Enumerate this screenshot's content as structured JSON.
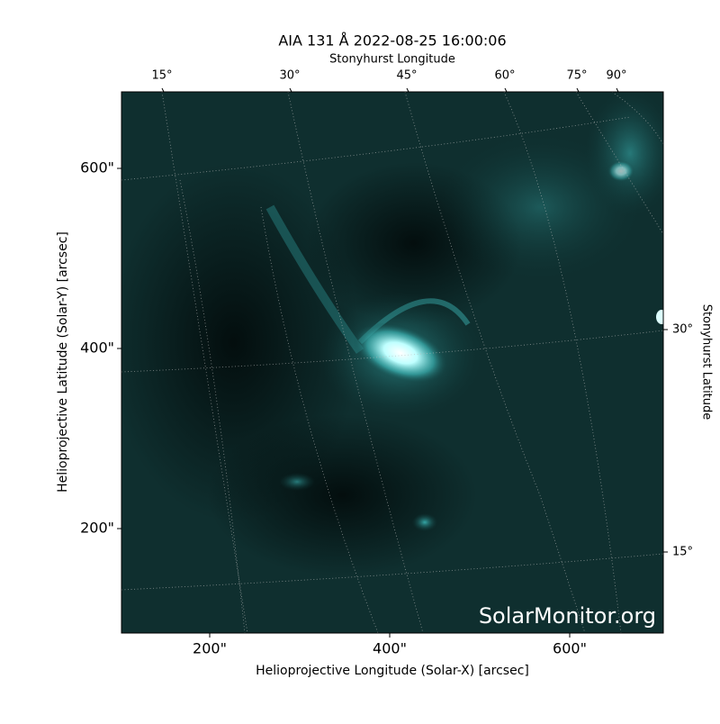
{
  "chart_data": {
    "type": "image",
    "title": "AIA 131 Å 2022-08-25 16:00:06",
    "x_label": "Helioprojective Longitude (Solar-X) [arcsec]",
    "y_label": "Helioprojective Latitude (Solar-Y) [arcsec]",
    "top_label": "Stonyhurst Longitude",
    "right_label": "Stonyhurst Latitude",
    "xlim": [
      102,
      704
    ],
    "ylim": [
      84,
      685
    ],
    "xticks": [
      {
        "value": 200,
        "label": "200\""
      },
      {
        "value": 400,
        "label": "400\""
      },
      {
        "value": 600,
        "label": "600\""
      }
    ],
    "yticks": [
      {
        "value": 200,
        "label": "200\""
      },
      {
        "value": 400,
        "label": "400\""
      },
      {
        "value": 600,
        "label": "600\""
      }
    ],
    "top_ticks": [
      {
        "value": 15,
        "label": "15°"
      },
      {
        "value": 30,
        "label": "30°"
      },
      {
        "value": 45,
        "label": "45°"
      },
      {
        "value": 60,
        "label": "60°"
      },
      {
        "value": 75,
        "label": "75°"
      },
      {
        "value": 90,
        "label": "90°"
      }
    ],
    "right_ticks": [
      {
        "value": 30,
        "label": "30°"
      },
      {
        "value": 15,
        "label": "15°"
      }
    ],
    "watermark": "SolarMonitor.org"
  }
}
